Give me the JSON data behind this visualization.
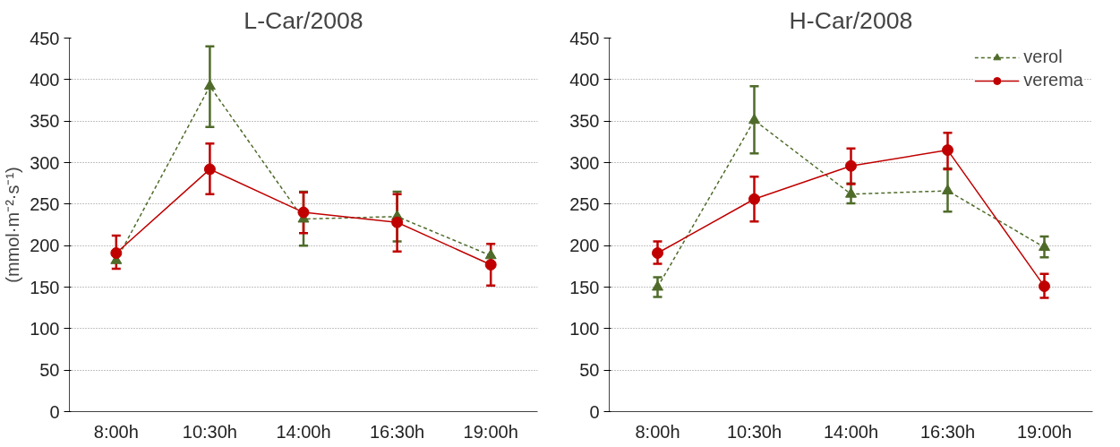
{
  "chart_data": [
    {
      "type": "line",
      "title": "L-Car/2008",
      "ylabel": "(mmol·m⁻²·s⁻¹)",
      "categories": [
        "8:00h",
        "10:30h",
        "14:00h",
        "16:30h",
        "19:00h"
      ],
      "ylim": [
        0,
        450
      ],
      "yticks": [
        0,
        50,
        100,
        150,
        200,
        250,
        300,
        350,
        400,
        450
      ],
      "grid": "y",
      "legend": false,
      "series": [
        {
          "color": "#4f6b2a",
          "marker": "triangle",
          "line_style": "dashed",
          "values": [
            182,
            392,
            232,
            235,
            188
          ],
          "errors": [
            null,
            [
              343,
              440
            ],
            [
              200,
              265
            ],
            [
              205,
              265
            ],
            null
          ]
        },
        {
          "color": "#c00000",
          "marker": "circle",
          "line_style": "solid",
          "values": [
            191,
            292,
            240,
            228,
            177
          ],
          "errors": [
            [
              172,
              212
            ],
            [
              262,
              323
            ],
            [
              215,
              264
            ],
            [
              193,
              262
            ],
            [
              152,
              202
            ]
          ]
        }
      ]
    },
    {
      "type": "line",
      "title": "H-Car/2008",
      "categories": [
        "8:00h",
        "10:30h",
        "14:00h",
        "16:30h",
        "19:00h"
      ],
      "ylim": [
        0,
        450
      ],
      "yticks": [
        0,
        50,
        100,
        150,
        200,
        250,
        300,
        350,
        400,
        450
      ],
      "grid": "y",
      "legend": "top right",
      "series": [
        {
          "name": "verol",
          "color": "#4f6b2a",
          "marker": "triangle",
          "line_style": "dashed",
          "values": [
            150,
            351,
            262,
            266,
            198
          ],
          "errors": [
            [
              138,
              162
            ],
            [
              311,
              392
            ],
            [
              251,
              275
            ],
            [
              241,
              293
            ],
            [
              186,
              211
            ]
          ]
        },
        {
          "name": "verema",
          "color": "#c00000",
          "marker": "circle",
          "line_style": "solid",
          "values": [
            191,
            256,
            296,
            315,
            151
          ],
          "errors": [
            [
              178,
              205
            ],
            [
              229,
              283
            ],
            [
              274,
              317
            ],
            [
              292,
              336
            ],
            [
              137,
              166
            ]
          ]
        }
      ]
    }
  ]
}
